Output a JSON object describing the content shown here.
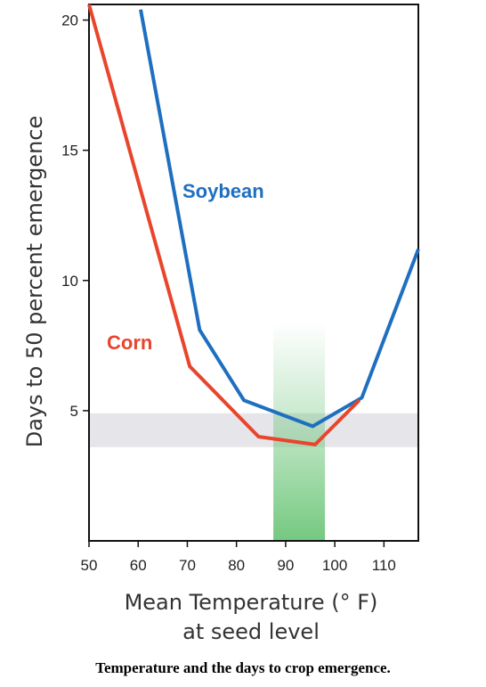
{
  "caption": "Temperature and the days to crop emergence.",
  "colors": {
    "soybean": "#1f6fc0",
    "corn": "#e8452c",
    "optimal_band": "#5cbf6a",
    "gray_band": "#e6e6ea"
  },
  "chart_data": {
    "type": "line",
    "ylabel": "Days to 50 percent emergence",
    "xlabel_lines": [
      "Mean Temperature (° F)",
      "at seed level"
    ],
    "xlim": [
      50,
      117
    ],
    "ylim": [
      0,
      20.6
    ],
    "xticks": [
      50,
      60,
      70,
      80,
      90,
      100,
      110
    ],
    "yticks": [
      5,
      10,
      15,
      20
    ],
    "grid": false,
    "series": [
      {
        "name": "Soybean",
        "color": "#1f6fc0",
        "x": [
          60.5,
          72.5,
          81.5,
          95.5,
          105.5,
          117
        ],
        "y": [
          20.4,
          8.1,
          5.4,
          4.4,
          5.5,
          11.2
        ]
      },
      {
        "name": "Corn",
        "color": "#e8452c",
        "x": [
          50,
          70.5,
          84.5,
          96,
          105
        ],
        "y": [
          20.6,
          6.7,
          4.0,
          3.7,
          5.4
        ]
      }
    ],
    "bands": [
      {
        "orient": "horizontal",
        "from": 3.6,
        "to": 4.9
      },
      {
        "orient": "vertical",
        "from": 87.5,
        "to": 98
      }
    ]
  }
}
